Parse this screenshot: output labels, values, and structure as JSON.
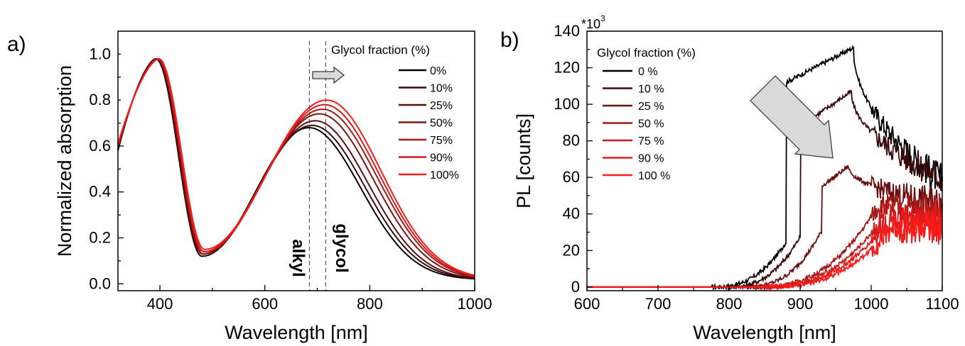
{
  "chart_data": [
    {
      "panel_label": "a)",
      "type": "line",
      "xlabel": "Wavelength [nm]",
      "ylabel": "Normalized absorption",
      "xlim": [
        320,
        1000
      ],
      "ylim": [
        -0.03,
        1.1
      ],
      "xticks": [
        400,
        600,
        800,
        1000
      ],
      "xtick_labels": [
        "400",
        "600",
        "800",
        "1000"
      ],
      "yticks": [
        0.0,
        0.2,
        0.4,
        0.6,
        0.8,
        1.0
      ],
      "ytick_labels": [
        "0.0",
        "0.2",
        "0.4",
        "0.6",
        "0.8",
        "1.0"
      ],
      "legend_title": "Glycol fraction (%)",
      "legend_position": "top-right",
      "annotations": {
        "left_line_label": "alkyl",
        "right_line_label": "glycol",
        "left_line_x": 685,
        "right_line_x": 716,
        "arrow_direction": "right"
      },
      "series": [
        {
          "name": "0%",
          "color": "#000000",
          "peak1": 0.98,
          "peak1_x": 392,
          "min": 0.12,
          "min_x": 480,
          "peak2": 0.68,
          "peak2_x": 684,
          "half_x": 800
        },
        {
          "name": "10%",
          "color": "#3a0a0a",
          "peak1": 0.98,
          "peak1_x": 393,
          "min": 0.12,
          "min_x": 480,
          "peak2": 0.69,
          "peak2_x": 690,
          "half_x": 808
        },
        {
          "name": "25%",
          "color": "#5a0f0f",
          "peak1": 0.98,
          "peak1_x": 394,
          "min": 0.13,
          "min_x": 481,
          "peak2": 0.71,
          "peak2_x": 696,
          "half_x": 815
        },
        {
          "name": "50%",
          "color": "#7a1414",
          "peak1": 0.98,
          "peak1_x": 395,
          "min": 0.13,
          "min_x": 482,
          "peak2": 0.74,
          "peak2_x": 704,
          "half_x": 825
        },
        {
          "name": "75%",
          "color": "#a41818",
          "peak1": 0.98,
          "peak1_x": 396,
          "min": 0.14,
          "min_x": 483,
          "peak2": 0.76,
          "peak2_x": 710,
          "half_x": 832
        },
        {
          "name": "90%",
          "color": "#d61a1a",
          "peak1": 0.98,
          "peak1_x": 397,
          "min": 0.14,
          "min_x": 484,
          "peak2": 0.78,
          "peak2_x": 714,
          "half_x": 836
        },
        {
          "name": "100%",
          "color": "#ff1a1a",
          "peak1": 0.98,
          "peak1_x": 398,
          "min": 0.15,
          "min_x": 485,
          "peak2": 0.8,
          "peak2_x": 718,
          "half_x": 840
        }
      ]
    },
    {
      "panel_label": "b)",
      "type": "line",
      "xlabel": "Wavelength [nm]",
      "ylabel": "PL [counts]",
      "y_multiplier": "*10",
      "y_multiplier_exp": "3",
      "xlim": [
        600,
        1100
      ],
      "ylim": [
        -2,
        140
      ],
      "xticks": [
        600,
        700,
        800,
        900,
        1000,
        1100
      ],
      "xtick_labels": [
        "600",
        "700",
        "800",
        "900",
        "1000",
        "1100"
      ],
      "yticks": [
        0,
        20,
        40,
        60,
        80,
        100,
        120,
        140
      ],
      "ytick_labels": [
        "0",
        "20",
        "40",
        "60",
        "80",
        "100",
        "120",
        "140"
      ],
      "legend_title": "Glycol fraction (%)",
      "legend_position": "top-left",
      "annotations": {
        "arrow_direction": "down-right"
      },
      "series": [
        {
          "name": "0 %",
          "color": "#000000",
          "peak": 131,
          "peak_x": 975,
          "onset_x": 815
        },
        {
          "name": "10 %",
          "color": "#3a0a0a",
          "peak": 107,
          "peak_x": 972,
          "onset_x": 835
        },
        {
          "name": "25 %",
          "color": "#6a1010",
          "peak": 66,
          "peak_x": 968,
          "onset_x": 860
        },
        {
          "name": "50 %",
          "color": "#a41818",
          "peak": 45,
          "peak_x": 1010,
          "onset_x": 875
        },
        {
          "name": "75 %",
          "color": "#c81a1a",
          "peak": 40,
          "peak_x": 1020,
          "onset_x": 880
        },
        {
          "name": "90 %",
          "color": "#e61a1a",
          "peak": 37,
          "peak_x": 1025,
          "onset_x": 885
        },
        {
          "name": "100 %",
          "color": "#ff1a1a",
          "peak": 33,
          "peak_x": 1030,
          "onset_x": 890
        }
      ]
    }
  ]
}
